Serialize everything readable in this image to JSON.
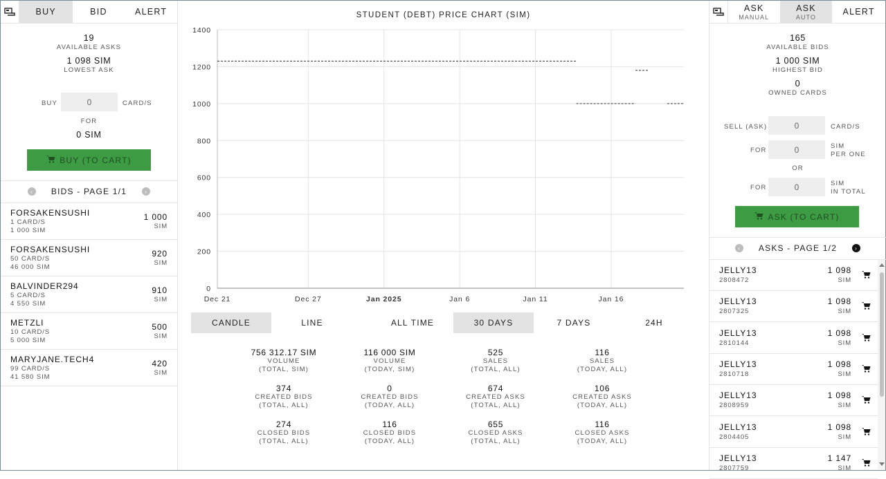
{
  "left": {
    "tabs": [
      "BUY",
      "BID",
      "ALERT"
    ],
    "available_asks": {
      "value": "19",
      "label": "AVAILABLE ASKS"
    },
    "lowest_ask": {
      "value": "1 098 SIM",
      "label": "LOWEST ASK"
    },
    "buy_label": "BUY",
    "buy_qty": "0",
    "cards_label": "CARD/S",
    "for_label": "FOR",
    "total": "0 SIM",
    "buy_button": "BUY (TO CART)",
    "pager": "BIDS - PAGE 1/1",
    "bids": [
      {
        "name": "FORSAKENSUSHI",
        "cards": "1 CARD/S",
        "total": "1 000 SIM",
        "amount": "1 000",
        "cur": "SIM"
      },
      {
        "name": "FORSAKENSUSHI",
        "cards": "50 CARD/S",
        "total": "46 000 SIM",
        "amount": "920",
        "cur": "SIM"
      },
      {
        "name": "BALVINDER294",
        "cards": "5 CARD/S",
        "total": "4 550 SIM",
        "amount": "910",
        "cur": "SIM"
      },
      {
        "name": "METZLI",
        "cards": "10 CARD/S",
        "total": "5 000 SIM",
        "amount": "500",
        "cur": "SIM"
      },
      {
        "name": "MARYJANE.TECH4",
        "cards": "99 CARD/S",
        "total": "41 580 SIM",
        "amount": "420",
        "cur": "SIM"
      }
    ]
  },
  "center": {
    "title": "STUDENT (DEBT) PRICE CHART (SIM)",
    "chart_type_buttons": [
      "CANDLE",
      "LINE"
    ],
    "range_buttons": [
      "ALL TIME",
      "30 DAYS",
      "7 DAYS",
      "24H"
    ],
    "stats": [
      {
        "value": "756 312.17 SIM",
        "l1": "VOLUME",
        "l2": "(TOTAL, SIM)"
      },
      {
        "value": "116 000 SIM",
        "l1": "VOLUME",
        "l2": "(TODAY, SIM)"
      },
      {
        "value": "525",
        "l1": "SALES",
        "l2": "(TOTAL, ALL)"
      },
      {
        "value": "116",
        "l1": "SALES",
        "l2": "(TODAY, ALL)"
      },
      {
        "value": "374",
        "l1": "CREATED BIDS",
        "l2": "(TOTAL, ALL)"
      },
      {
        "value": "0",
        "l1": "CREATED BIDS",
        "l2": "(TODAY, ALL)"
      },
      {
        "value": "674",
        "l1": "CREATED ASKS",
        "l2": "(TOTAL, ALL)"
      },
      {
        "value": "106",
        "l1": "CREATED ASKS",
        "l2": "(TODAY, ALL)"
      },
      {
        "value": "274",
        "l1": "CLOSED BIDS",
        "l2": "(TOTAL, ALL)"
      },
      {
        "value": "116",
        "l1": "CLOSED BIDS",
        "l2": "(TODAY, ALL)"
      },
      {
        "value": "655",
        "l1": "CLOSED ASKS",
        "l2": "(TOTAL, ALL)"
      },
      {
        "value": "116",
        "l1": "CLOSED ASKS",
        "l2": "(TODAY, ALL)"
      }
    ]
  },
  "chart_data": {
    "type": "line",
    "ylim": [
      0,
      1400
    ],
    "yticks": [
      0,
      200,
      400,
      600,
      800,
      1000,
      1200,
      1400
    ],
    "xticks": [
      {
        "label": "Dec 21",
        "bold": false
      },
      {
        "label": "Dec 27",
        "bold": false
      },
      {
        "label": "Jan 2025",
        "bold": true
      },
      {
        "label": "Jan 6",
        "bold": false
      },
      {
        "label": "Jan 11",
        "bold": false
      },
      {
        "label": "Jan 16",
        "bold": false
      }
    ],
    "series": [
      {
        "segments": [
          {
            "from": "Dec 21",
            "to": "Jan 14",
            "value": 1230
          },
          {
            "from": "Jan 14",
            "to": "Jan 18",
            "value": 1000
          },
          {
            "from": "Jan 18",
            "to": "Jan 19",
            "value": 1180
          },
          {
            "from": "Jan 19.5",
            "to": "Jan 20.5",
            "value": 1000
          }
        ]
      }
    ]
  },
  "right": {
    "tabs": [
      {
        "label": "ASK",
        "sub": "MANUAL"
      },
      {
        "label": "ASK",
        "sub": "AUTO"
      },
      {
        "label": "ALERT",
        "sub": ""
      }
    ],
    "available_bids": {
      "value": "165",
      "label": "AVAILABLE BIDS"
    },
    "highest_bid": {
      "value": "1 000 SIM",
      "label": "HIGHEST BID"
    },
    "owned_cards": {
      "value": "0",
      "label": "OWNED CARDS"
    },
    "sell_label": "SELL (ASK)",
    "sell_qty": "0",
    "cards_label": "CARD/S",
    "for_label": "FOR",
    "per_one_value": "0",
    "per_one_l1": "SIM",
    "per_one_l2": "PER ONE",
    "or_label": "OR",
    "total_value": "0",
    "total_l1": "SIM",
    "total_l2": "IN TOTAL",
    "ask_button": "ASK (TO CART)",
    "pager": "ASKS - PAGE 1/2",
    "asks": [
      {
        "name": "JELLY13",
        "id": "2808472",
        "amount": "1 098",
        "cur": "SIM"
      },
      {
        "name": "JELLY13",
        "id": "2807325",
        "amount": "1 098",
        "cur": "SIM"
      },
      {
        "name": "JELLY13",
        "id": "2810144",
        "amount": "1 098",
        "cur": "SIM"
      },
      {
        "name": "JELLY13",
        "id": "2810718",
        "amount": "1 098",
        "cur": "SIM"
      },
      {
        "name": "JELLY13",
        "id": "2808959",
        "amount": "1 098",
        "cur": "SIM"
      },
      {
        "name": "JELLY13",
        "id": "2804405",
        "amount": "1 098",
        "cur": "SIM"
      },
      {
        "name": "JELLY13",
        "id": "2807759",
        "amount": "1 147",
        "cur": "SIM"
      }
    ]
  },
  "colors": {
    "accent_green": "#3d9b44",
    "active_tab": "#e3e3e3"
  },
  "icons": {
    "terminal": "card-reader-icon",
    "cart": "cart-icon",
    "prev": "chevron-left-icon",
    "next": "chevron-right-icon"
  }
}
